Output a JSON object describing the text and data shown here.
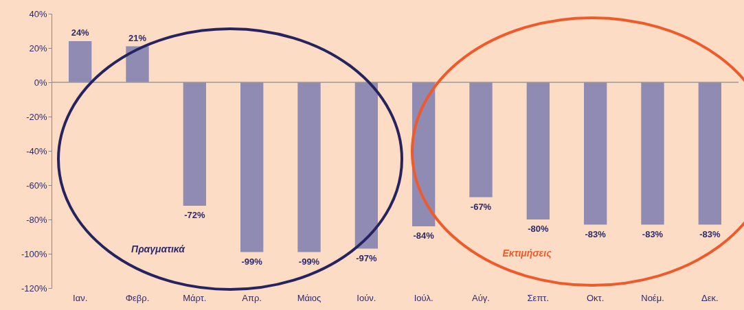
{
  "chart_data": {
    "type": "bar",
    "categories": [
      "Ιαν.",
      "Φεβρ.",
      "Μάρτ.",
      "Απρ.",
      "Μάιος",
      "Ιούν.",
      "Ιούλ.",
      "Αύγ.",
      "Σεπτ.",
      "Οκτ.",
      "Νοέμ.",
      "Δεκ."
    ],
    "values": [
      24,
      21,
      -72,
      -99,
      -99,
      -97,
      -84,
      -67,
      -80,
      -83,
      -83,
      -83
    ],
    "color": "#8f8bb2",
    "value_labels": [
      "24%",
      "21%",
      "-72%",
      "-99%",
      "-99%",
      "-97%",
      "-84%",
      "-67%",
      "-80%",
      "-83%",
      "-83%",
      "-83%"
    ],
    "ylim": [
      -120,
      40
    ],
    "yticks": [
      {
        "value": -120,
        "label": "-120%"
      },
      {
        "value": -100,
        "label": "-100%"
      },
      {
        "value": -80,
        "label": "-80%"
      },
      {
        "value": -60,
        "label": "-60%"
      },
      {
        "value": -40,
        "label": "-40%"
      },
      {
        "value": -20,
        "label": "-20%"
      },
      {
        "value": 0,
        "label": "0%"
      },
      {
        "value": 20,
        "label": "20%"
      },
      {
        "value": 40,
        "label": "40%"
      }
    ],
    "ref_lines": [
      {
        "axis": "y",
        "value": 0,
        "color": "#9a9a9a"
      }
    ],
    "annotations": [
      "Πραγματικά",
      "Εκτιμήσεις"
    ],
    "grid": false
  }
}
